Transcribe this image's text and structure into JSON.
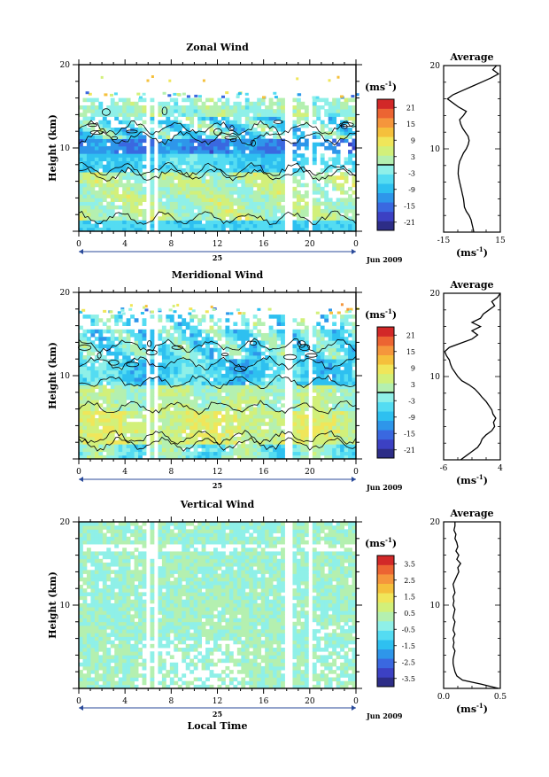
{
  "chart_data": [
    {
      "type": "heatmap",
      "title": "Zonal Wind",
      "ylabel": "Height (km)",
      "xlabel": "",
      "ylim": [
        0,
        20
      ],
      "xlim": [
        0,
        24
      ],
      "y_ticks": [
        "10",
        "20"
      ],
      "x_ticks": [
        "0",
        "4",
        "8",
        "12",
        "16",
        "20",
        "0"
      ],
      "date_day": "25",
      "date_month": "Jun 2009",
      "colorbar": {
        "unit_label": "(ms",
        "unit_exp": "-1",
        "unit_close": ")",
        "range": [
          -24,
          24
        ],
        "tick_labels": [
          "21",
          "15",
          "9",
          "3",
          "-3",
          "-9",
          "-15",
          "-21"
        ],
        "zero_contour_marked": true
      },
      "profile": {
        "title": "Average",
        "xlim": [
          -15,
          15
        ],
        "x_ticks": [
          "-15",
          "15"
        ],
        "y_ticks": [
          "10",
          "20"
        ],
        "xlabel_base": "(ms",
        "xlabel_exp": "-1",
        "xlabel_close": ")",
        "heights": [
          0,
          0.5,
          1,
          1.5,
          2,
          2.5,
          3,
          3.5,
          4,
          4.5,
          5,
          5.5,
          6,
          6.5,
          7,
          7.5,
          8,
          8.5,
          9,
          9.5,
          10,
          10.5,
          11,
          11.5,
          12,
          12.5,
          13,
          13.5,
          14,
          14.5,
          15,
          15.5,
          16,
          16.5,
          17,
          17.5,
          18,
          18.5,
          19,
          19.5,
          20
        ],
        "values": [
          1,
          0.5,
          0,
          -0.5,
          -1.5,
          -3,
          -4,
          -4.2,
          -4.5,
          -5,
          -5.5,
          -6,
          -6.5,
          -7,
          -7.3,
          -7.2,
          -7,
          -6.5,
          -5.5,
          -4.5,
          -3,
          -2,
          -1.5,
          -2,
          -3.5,
          -5,
          -6,
          -6.5,
          -4.5,
          -3,
          -7,
          -10,
          -13,
          -10,
          -5,
          0,
          5,
          10,
          14,
          11,
          13
        ]
      }
    },
    {
      "type": "heatmap",
      "title": "Meridional Wind",
      "ylabel": "Height (km)",
      "xlabel": "",
      "ylim": [
        0,
        20
      ],
      "xlim": [
        0,
        24
      ],
      "y_ticks": [
        "10",
        "20"
      ],
      "x_ticks": [
        "0",
        "4",
        "8",
        "12",
        "16",
        "20",
        "0"
      ],
      "date_day": "25",
      "date_month": "Jun 2009",
      "colorbar": {
        "unit_label": "(ms",
        "unit_exp": "-1",
        "unit_close": ")",
        "range": [
          -24,
          24
        ],
        "tick_labels": [
          "21",
          "15",
          "9",
          "3",
          "-3",
          "-9",
          "-15",
          "-21"
        ],
        "zero_contour_marked": true
      },
      "profile": {
        "title": "Average",
        "xlim": [
          -6,
          4
        ],
        "x_ticks": [
          "-6",
          "4"
        ],
        "y_ticks": [
          "10",
          "20"
        ],
        "xlabel_base": "(ms",
        "xlabel_exp": "-1",
        "xlabel_close": ")",
        "heights": [
          0,
          0.5,
          1,
          1.5,
          2,
          2.5,
          3,
          3.5,
          4,
          4.5,
          5,
          5.5,
          6,
          6.5,
          7,
          7.5,
          8,
          8.5,
          9,
          9.5,
          10,
          10.5,
          11,
          11.5,
          12,
          12.5,
          13,
          13.5,
          14,
          14.5,
          15,
          15.5,
          16,
          16.5,
          17,
          17.5,
          18,
          18.5,
          19,
          19.5,
          20
        ],
        "values": [
          -3,
          -2,
          -1,
          0,
          0.5,
          0.8,
          1.5,
          2.5,
          3,
          2.8,
          3.2,
          2.7,
          2.5,
          2,
          1.5,
          0.8,
          0.2,
          -0.5,
          -1.5,
          -2.8,
          -3.5,
          -4,
          -4.5,
          -4.8,
          -5,
          -5.5,
          -5.8,
          -5,
          -3,
          -1,
          0,
          -1,
          0.5,
          -1,
          0.5,
          1,
          2,
          3,
          2.5,
          3.5,
          4
        ]
      }
    },
    {
      "type": "heatmap",
      "title": "Vertical Wind",
      "ylabel": "Height (km)",
      "xlabel": "Local Time",
      "ylim": [
        0,
        20
      ],
      "xlim": [
        0,
        24
      ],
      "y_ticks": [
        "10",
        "20"
      ],
      "x_ticks": [
        "0",
        "4",
        "8",
        "12",
        "16",
        "20",
        "0"
      ],
      "date_day": "25",
      "date_month": "Jun 2009",
      "colorbar": {
        "unit_label": "(ms",
        "unit_exp": "-1",
        "unit_close": ")",
        "range": [
          -4,
          4
        ],
        "tick_labels": [
          "3.5",
          "2.5",
          "1.5",
          "0.5",
          "-0.5",
          "-1.5",
          "-2.5",
          "-3.5"
        ],
        "zero_contour_marked": false
      },
      "profile": {
        "title": "Average",
        "xlim": [
          -0.1,
          0.5
        ],
        "x_ticks": [
          "0.0",
          "0.5"
        ],
        "y_ticks": [
          "10",
          "20"
        ],
        "xlabel_base": "(ms",
        "xlabel_exp": "-1",
        "xlabel_close": ")",
        "heights": [
          0,
          0.5,
          1,
          1.5,
          2,
          2.5,
          3,
          3.5,
          4,
          4.5,
          5,
          5.5,
          6,
          6.5,
          7,
          7.5,
          8,
          8.5,
          9,
          9.5,
          10,
          10.5,
          11,
          11.5,
          12,
          12.5,
          13,
          13.5,
          14,
          14.5,
          15,
          15.5,
          16,
          16.5,
          17,
          17.5,
          18,
          18.5,
          19,
          19.5,
          20
        ],
        "values": [
          0.48,
          0.3,
          0.1,
          0.04,
          0.02,
          0.01,
          0.0,
          0.0,
          0.01,
          0.02,
          0.0,
          0.01,
          0.0,
          0.02,
          0.0,
          0.01,
          0.02,
          0.0,
          0.01,
          0.02,
          0.0,
          0.01,
          0.0,
          0.02,
          0.01,
          0.0,
          0.02,
          0.04,
          0.06,
          0.05,
          0.08,
          0.04,
          0.06,
          0.03,
          0.05,
          0.04,
          0.02,
          0.03,
          0.01,
          0.02,
          0.02
        ]
      }
    }
  ]
}
